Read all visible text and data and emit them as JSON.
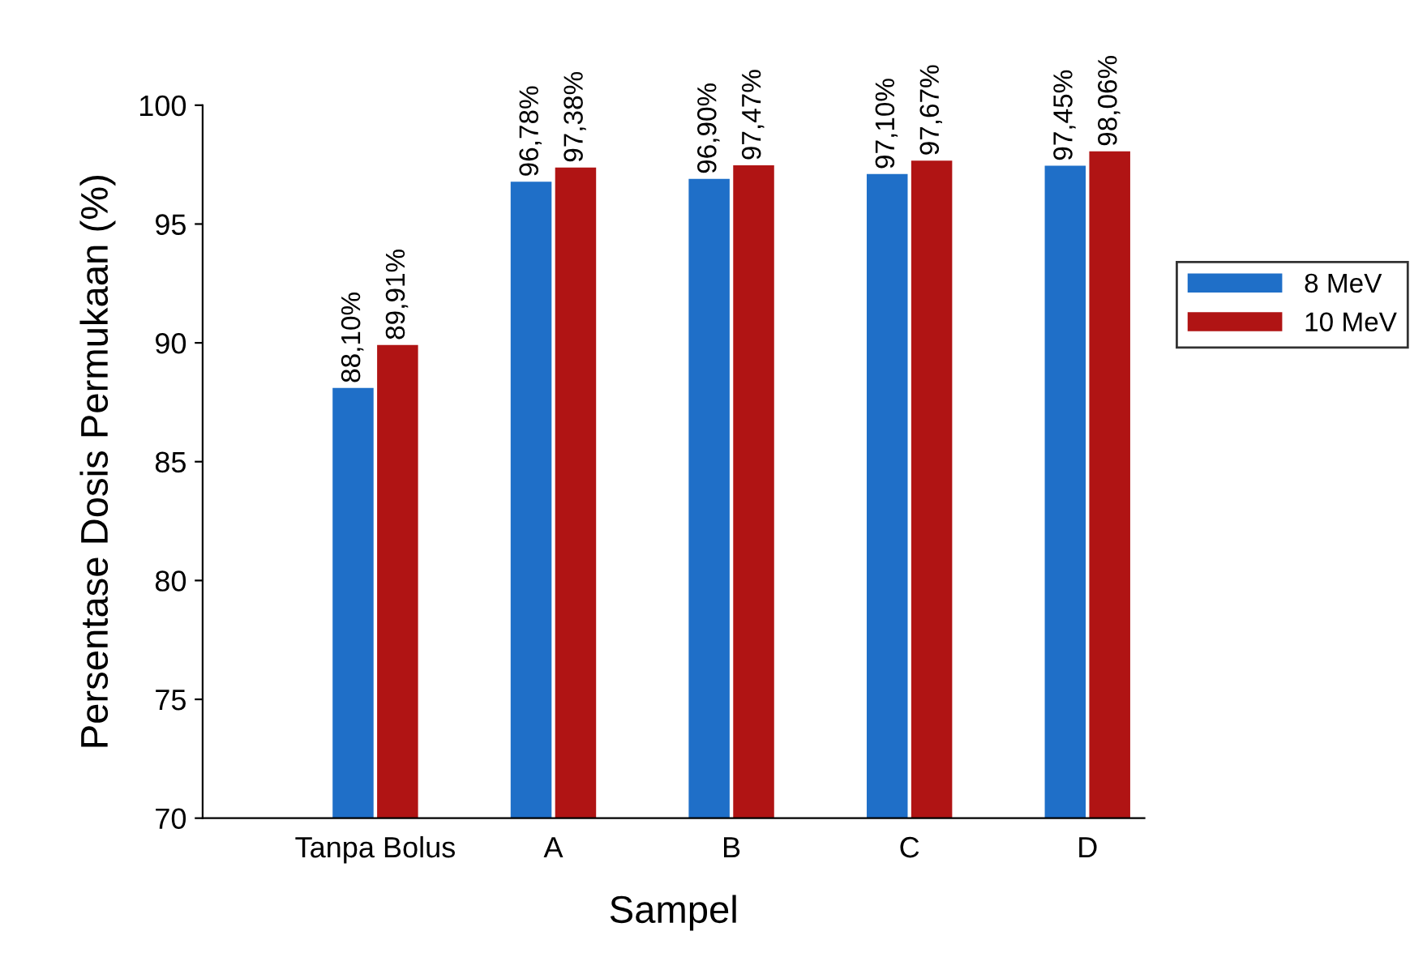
{
  "chart_data": {
    "type": "bar",
    "xlabel": "Sampel",
    "ylabel": "Persentase Dosis Permukaan (%)",
    "categories": [
      "Tanpa Bolus",
      "A",
      "B",
      "C",
      "D"
    ],
    "series": [
      {
        "name": "8 MeV",
        "color": "#1f6fc8",
        "values": [
          88.1,
          96.78,
          96.9,
          97.1,
          97.45
        ],
        "value_labels": [
          "88,10%",
          "96,78%",
          "96,90%",
          "97,10%",
          "97,45%"
        ]
      },
      {
        "name": "10 MeV",
        "color": "#b01414",
        "values": [
          89.91,
          97.38,
          97.47,
          97.67,
          98.06
        ],
        "value_labels": [
          "89,91%",
          "97,38%",
          "97,47%",
          "97,67%",
          "98,06%"
        ]
      }
    ],
    "ylim": [
      70,
      100
    ],
    "yticks": [
      70,
      75,
      80,
      85,
      90,
      95,
      100
    ],
    "grid": false,
    "legend": "right"
  }
}
